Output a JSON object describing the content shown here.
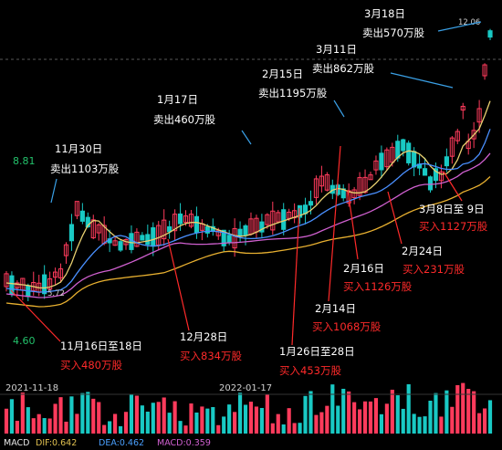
{
  "chart_data": {
    "type": "candlestick",
    "y_ticks": [
      "8.81",
      "4.60"
    ],
    "x_ticks": [
      "2021-11-18",
      "2022-01-17"
    ],
    "low_marker": "5.72",
    "high_marker": "12.06",
    "indicator": {
      "name": "MACD",
      "dif": "DIF:0.642",
      "dea": "DEA:0.462",
      "macd": "MACD:0.359"
    },
    "annotations": [
      {
        "id": "a1",
        "kind": "sell",
        "date": "11月30日",
        "text": "卖出1103万股"
      },
      {
        "id": "a2",
        "kind": "sell",
        "date": "1月17日",
        "text": "卖出460万股"
      },
      {
        "id": "a3",
        "kind": "sell",
        "date": "2月15日",
        "text": "卖出1195万股"
      },
      {
        "id": "a4",
        "kind": "sell",
        "date": "3月11日",
        "text": "卖出862万股"
      },
      {
        "id": "a5",
        "kind": "sell",
        "date": "3月18日",
        "text": "卖出570万股"
      },
      {
        "id": "b1",
        "kind": "buy",
        "date": "11月16日至18日",
        "text": "买入480万股"
      },
      {
        "id": "b2",
        "kind": "buy",
        "date": "12月28日",
        "text": "买入834万股"
      },
      {
        "id": "b3",
        "kind": "buy",
        "date": "1月26日至28日",
        "text": "买入453万股"
      },
      {
        "id": "b4",
        "kind": "buy",
        "date": "2月14日",
        "text": "买入1068万股"
      },
      {
        "id": "b5",
        "kind": "buy",
        "date": "2月16日",
        "text": "买入1126万股"
      },
      {
        "id": "b6",
        "kind": "buy",
        "date": "2月24日",
        "text": "买入231万股"
      },
      {
        "id": "b7",
        "kind": "buy",
        "date": "3月8日至 9日",
        "text": "买入1127万股"
      }
    ]
  }
}
